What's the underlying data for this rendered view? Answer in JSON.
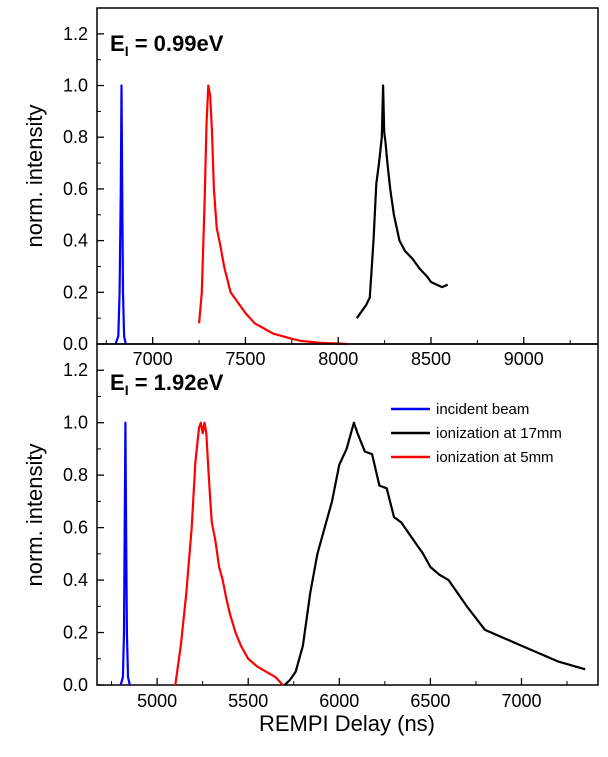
{
  "figure": {
    "xlabel": "REMPI Delay (ns)"
  },
  "chart_data": [
    {
      "type": "line",
      "title": "E",
      "title_sub": "I",
      "title_rest": " = 0.99eV",
      "xlabel": "",
      "ylabel": "norm. intensity",
      "xlim": [
        6700,
        9400
      ],
      "ylim": [
        0,
        1.3
      ],
      "xticks": [
        7000,
        7500,
        8000,
        8500,
        9000
      ],
      "yticks": [
        0.0,
        0.2,
        0.4,
        0.6,
        0.8,
        1.0,
        1.2
      ],
      "ytick_labels": [
        "0.0",
        "0.2",
        "0.4",
        "0.6",
        "0.8",
        "1.0",
        "1.2"
      ],
      "series": [
        {
          "name": "incident beam",
          "color": "#0000ff",
          "x": [
            6800,
            6815,
            6822,
            6828,
            6832,
            6836,
            6840,
            6846,
            6855
          ],
          "y": [
            0.0,
            0.03,
            0.2,
            0.6,
            1.0,
            0.6,
            0.2,
            0.03,
            0.0
          ]
        },
        {
          "name": "ionization at 17mm",
          "color": "#000000",
          "x": [
            8100,
            8150,
            8170,
            8190,
            8205,
            8220,
            8235,
            8242,
            8248,
            8255,
            8265,
            8280,
            8300,
            8330,
            8360,
            8400,
            8440,
            8480,
            8500,
            8530,
            8560,
            8590
          ],
          "y": [
            0.1,
            0.15,
            0.18,
            0.4,
            0.62,
            0.7,
            0.8,
            1.0,
            0.82,
            0.78,
            0.7,
            0.6,
            0.5,
            0.4,
            0.36,
            0.33,
            0.29,
            0.26,
            0.24,
            0.23,
            0.22,
            0.23
          ]
        },
        {
          "name": "ionization at 5mm",
          "color": "#ff0000",
          "x": [
            7250,
            7265,
            7280,
            7290,
            7300,
            7310,
            7320,
            7330,
            7345,
            7365,
            7385,
            7420,
            7460,
            7500,
            7550,
            7600,
            7650,
            7700,
            7750,
            7800,
            7850,
            7900,
            7950,
            8000,
            8050
          ],
          "y": [
            0.08,
            0.2,
            0.55,
            0.85,
            1.0,
            0.96,
            0.82,
            0.6,
            0.45,
            0.38,
            0.3,
            0.2,
            0.16,
            0.12,
            0.08,
            0.06,
            0.04,
            0.03,
            0.02,
            0.012,
            0.008,
            0.005,
            0.003,
            0.002,
            0.0
          ]
        }
      ]
    },
    {
      "type": "line",
      "title": "E",
      "title_sub": "I",
      "title_rest": " = 1.92eV",
      "xlabel": "REMPI Delay (ns)",
      "ylabel": "norm. intensity",
      "xlim": [
        4670,
        7420
      ],
      "ylim": [
        0,
        1.3
      ],
      "xticks": [
        5000,
        5500,
        6000,
        6500,
        7000
      ],
      "yticks": [
        0.0,
        0.2,
        0.4,
        0.6,
        0.8,
        1.0,
        1.2
      ],
      "ytick_labels": [
        "0.0",
        "0.2",
        "0.4",
        "0.6",
        "0.8",
        "1.0",
        "1.2"
      ],
      "legend": {
        "placement": "top-right",
        "entries": [
          "incident beam",
          "ionization at 17mm",
          "ionization at 5mm"
        ]
      },
      "series": [
        {
          "name": "incident beam",
          "color": "#0000ff",
          "x": [
            4800,
            4812,
            4818,
            4822,
            4826,
            4830,
            4834,
            4840,
            4850
          ],
          "y": [
            0.0,
            0.03,
            0.2,
            0.6,
            1.0,
            0.6,
            0.2,
            0.03,
            0.0
          ]
        },
        {
          "name": "ionization at 17mm",
          "color": "#000000",
          "x": [
            5700,
            5730,
            5760,
            5800,
            5840,
            5880,
            5920,
            5960,
            6000,
            6040,
            6080,
            6100,
            6140,
            6180,
            6220,
            6260,
            6300,
            6340,
            6380,
            6420,
            6460,
            6500,
            6550,
            6600,
            6700,
            6800,
            7000,
            7200,
            7350
          ],
          "y": [
            0.0,
            0.02,
            0.05,
            0.15,
            0.35,
            0.5,
            0.6,
            0.7,
            0.84,
            0.9,
            1.0,
            0.96,
            0.89,
            0.88,
            0.76,
            0.75,
            0.64,
            0.62,
            0.58,
            0.54,
            0.5,
            0.45,
            0.42,
            0.4,
            0.3,
            0.21,
            0.15,
            0.09,
            0.06
          ]
        },
        {
          "name": "ionization at 5mm",
          "color": "#ff0000",
          "x": [
            5100,
            5130,
            5160,
            5190,
            5210,
            5230,
            5240,
            5250,
            5260,
            5270,
            5280,
            5290,
            5300,
            5320,
            5340,
            5360,
            5380,
            5400,
            5430,
            5460,
            5500,
            5550,
            5600,
            5650,
            5690
          ],
          "y": [
            0.0,
            0.15,
            0.35,
            0.6,
            0.85,
            0.98,
            1.0,
            0.96,
            1.0,
            0.96,
            0.84,
            0.72,
            0.62,
            0.55,
            0.45,
            0.4,
            0.33,
            0.27,
            0.2,
            0.15,
            0.1,
            0.07,
            0.05,
            0.03,
            0.0
          ]
        }
      ]
    }
  ]
}
